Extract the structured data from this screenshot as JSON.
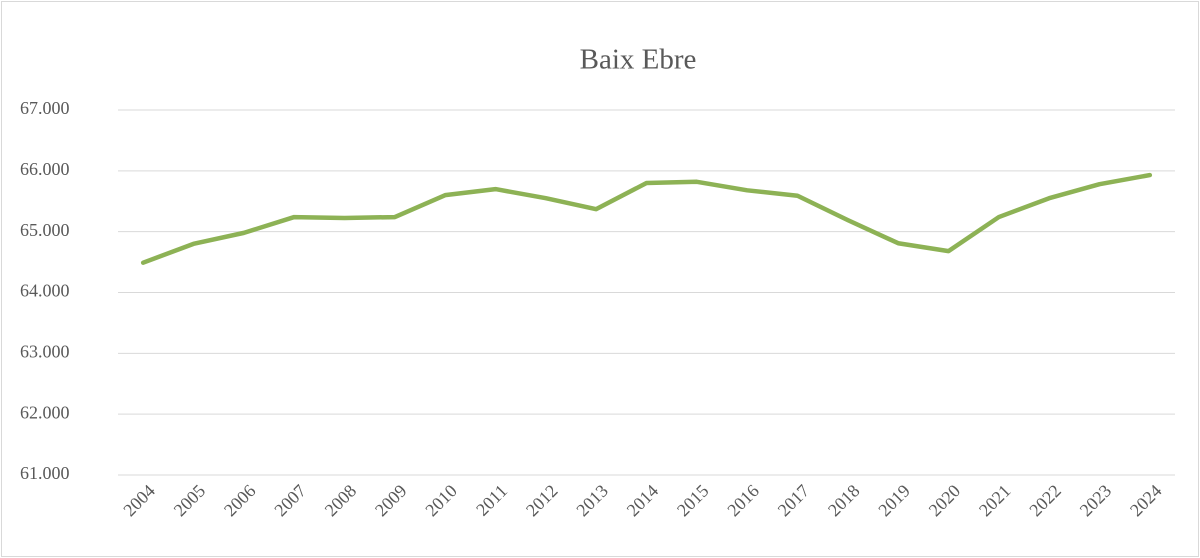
{
  "chart_data": {
    "type": "line",
    "title": "Baix Ebre",
    "categories": [
      "2004",
      "2005",
      "2006",
      "2007",
      "2008",
      "2009",
      "2010",
      "2011",
      "2012",
      "2013",
      "2014",
      "2015",
      "2016",
      "2017",
      "2018",
      "2019",
      "2020",
      "2021",
      "2022",
      "2023",
      "2024"
    ],
    "series": [
      {
        "name": "Baix Ebre",
        "color": "#8db255",
        "values": [
          64490,
          64800,
          64980,
          65240,
          65225,
          65240,
          65600,
          65700,
          65550,
          65370,
          65800,
          65820,
          65680,
          65590,
          65190,
          64810,
          64680,
          65240,
          65550,
          65780,
          65930
        ]
      }
    ],
    "ylim": [
      61000,
      67000
    ],
    "yticks": [
      {
        "value": 61000,
        "label": "61.000"
      },
      {
        "value": 62000,
        "label": "62.000"
      },
      {
        "value": 63000,
        "label": "63.000"
      },
      {
        "value": 64000,
        "label": "64.000"
      },
      {
        "value": 65000,
        "label": "65.000"
      },
      {
        "value": 66000,
        "label": "66.000"
      },
      {
        "value": 67000,
        "label": "67.000"
      }
    ],
    "grid": true
  }
}
